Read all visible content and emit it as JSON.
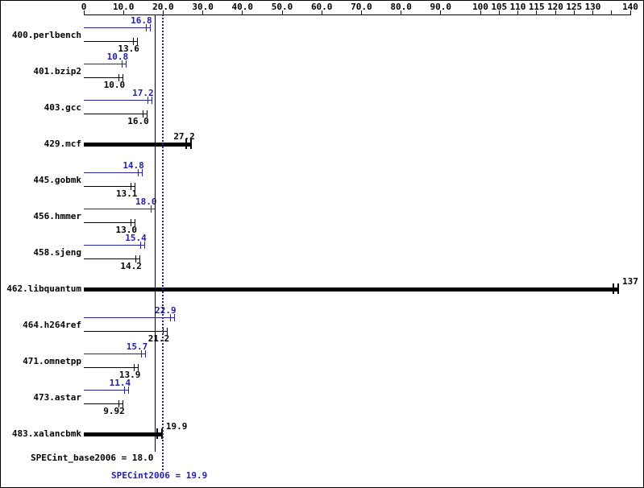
{
  "chart_data": {
    "type": "bar",
    "orientation": "horizontal",
    "xlim": [
      0,
      140
    ],
    "grid": false,
    "axis_ticks": [
      {
        "value": 0,
        "label": "0"
      },
      {
        "value": 10,
        "label": "10.0"
      },
      {
        "value": 20,
        "label": "20.0"
      },
      {
        "value": 30,
        "label": "30.0"
      },
      {
        "value": 40,
        "label": "40.0"
      },
      {
        "value": 50,
        "label": "50.0"
      },
      {
        "value": 60,
        "label": "60.0"
      },
      {
        "value": 70,
        "label": "70.0"
      },
      {
        "value": 80,
        "label": "80.0"
      },
      {
        "value": 90,
        "label": "90.0"
      },
      {
        "value": 100,
        "label": "100"
      },
      {
        "value": 105,
        "label": "105"
      },
      {
        "value": 110,
        "label": "110"
      },
      {
        "value": 115,
        "label": "115"
      },
      {
        "value": 120,
        "label": "120"
      },
      {
        "value": 125,
        "label": "125"
      },
      {
        "value": 130,
        "label": "130"
      },
      {
        "value": 135,
        "label": ""
      },
      {
        "value": 140,
        "label": "140"
      }
    ],
    "benchmarks": [
      {
        "name": "400.perlbench",
        "peak": 16.8,
        "peak_label": "16.8",
        "base": 13.6,
        "base_label": "13.6"
      },
      {
        "name": "401.bzip2",
        "peak": 10.8,
        "peak_label": "10.8",
        "base": 10.0,
        "base_label": "10.0"
      },
      {
        "name": "403.gcc",
        "peak": 17.2,
        "peak_label": "17.2",
        "base": 16.0,
        "base_label": "16.0"
      },
      {
        "name": "429.mcf",
        "single": 27.2,
        "single_label": "27.2",
        "label_align": "right"
      },
      {
        "name": "445.gobmk",
        "peak": 14.8,
        "peak_label": "14.8",
        "base": 13.1,
        "base_label": "13.1"
      },
      {
        "name": "456.hmmer",
        "peak": 18.0,
        "peak_label": "18.0",
        "base": 13.0,
        "base_label": "13.0"
      },
      {
        "name": "458.sjeng",
        "peak": 15.4,
        "peak_label": "15.4",
        "base": 14.2,
        "base_label": "14.2"
      },
      {
        "name": "462.libquantum",
        "single": 137,
        "single_label": "137",
        "label_align": "left"
      },
      {
        "name": "464.h264ref",
        "peak": 22.9,
        "peak_label": "22.9",
        "base": 21.2,
        "base_label": "21.2"
      },
      {
        "name": "471.omnetpp",
        "peak": 15.7,
        "peak_label": "15.7",
        "base": 13.9,
        "base_label": "13.9"
      },
      {
        "name": "473.astar",
        "peak": 11.4,
        "peak_label": "11.4",
        "base": 9.92,
        "base_label": "9.92"
      },
      {
        "name": "483.xalancbmk",
        "single": 19.9,
        "single_label": "19.9",
        "label_align": "left"
      }
    ],
    "mean_lines": [
      {
        "name": "base_mean",
        "value": 18.0,
        "style": "solid",
        "color": "#000000"
      },
      {
        "name": "peak_mean",
        "value": 19.9,
        "style": "dotted",
        "color": "#2222aa"
      }
    ],
    "summary": {
      "base_text": "SPECint_base2006 = 18.0",
      "peak_text": "SPECint2006 = 19.9"
    },
    "colors": {
      "peak_bar": "#2222aa",
      "base_bar": "#000000",
      "background": "#ffffff",
      "border": "#000000"
    }
  }
}
